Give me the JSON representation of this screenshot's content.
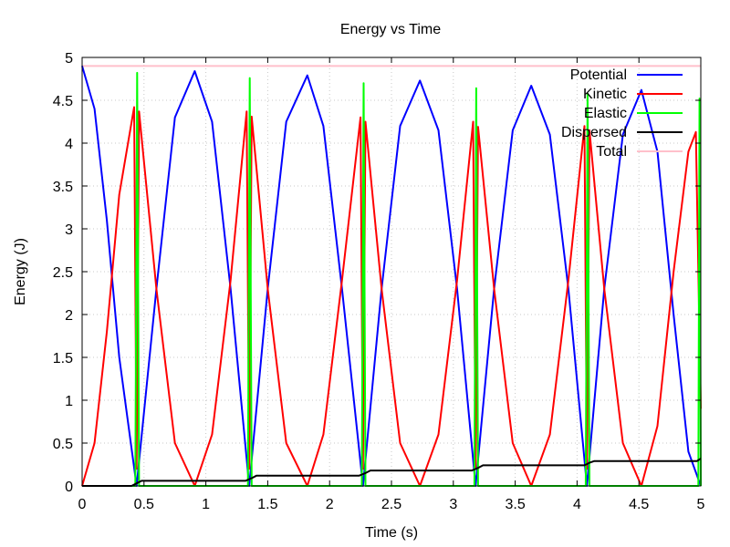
{
  "chart_data": {
    "type": "line",
    "title": "Energy vs Time",
    "xlabel": "Time (s)",
    "ylabel": "Energy (J)",
    "xlim": [
      0,
      5
    ],
    "ylim": [
      0,
      5
    ],
    "xticks": [
      "0",
      "0.5",
      "1",
      "1.5",
      "2",
      "2.5",
      "3",
      "3.5",
      "4",
      "4.5",
      "5"
    ],
    "yticks": [
      "0",
      "0.5",
      "1",
      "1.5",
      "2",
      "2.5",
      "3",
      "3.5",
      "4",
      "4.5",
      "5"
    ],
    "grid": true,
    "legend_position": "top-right",
    "series": [
      {
        "name": "Potential",
        "color": "#0000ff",
        "x": [
          0,
          0.1,
          0.2,
          0.3,
          0.44,
          0.6,
          0.75,
          0.91,
          1.05,
          1.2,
          1.35,
          1.5,
          1.65,
          1.82,
          1.95,
          2.1,
          2.27,
          2.42,
          2.57,
          2.73,
          2.88,
          3.03,
          3.18,
          3.33,
          3.48,
          3.63,
          3.78,
          3.93,
          4.08,
          4.22,
          4.37,
          4.52,
          4.65,
          4.78,
          4.9,
          5.0
        ],
        "y": [
          4.9,
          4.4,
          3.1,
          1.5,
          0.0,
          2.3,
          4.3,
          4.84,
          4.25,
          2.3,
          0.0,
          2.3,
          4.25,
          4.79,
          4.2,
          2.3,
          0.0,
          2.3,
          4.2,
          4.73,
          4.15,
          2.3,
          0.0,
          2.3,
          4.15,
          4.67,
          4.1,
          2.3,
          0.0,
          2.3,
          4.1,
          4.62,
          3.9,
          2.0,
          0.4,
          0.0
        ]
      },
      {
        "name": "Kinetic",
        "color": "#ff0000",
        "x": [
          0,
          0.1,
          0.2,
          0.3,
          0.42,
          0.44,
          0.46,
          0.6,
          0.75,
          0.91,
          1.05,
          1.2,
          1.33,
          1.35,
          1.37,
          1.5,
          1.65,
          1.82,
          1.95,
          2.1,
          2.25,
          2.27,
          2.29,
          2.42,
          2.57,
          2.73,
          2.88,
          3.03,
          3.16,
          3.18,
          3.2,
          3.33,
          3.48,
          3.63,
          3.78,
          3.93,
          4.06,
          4.08,
          4.1,
          4.22,
          4.37,
          4.52,
          4.65,
          4.78,
          4.9,
          4.96,
          5.0
        ],
        "y": [
          0.0,
          0.5,
          1.8,
          3.4,
          4.42,
          0.2,
          4.37,
          2.3,
          0.5,
          0.0,
          0.6,
          2.4,
          4.37,
          0.2,
          4.31,
          2.3,
          0.5,
          0.0,
          0.6,
          2.4,
          4.3,
          0.2,
          4.25,
          2.3,
          0.5,
          0.0,
          0.6,
          2.4,
          4.25,
          0.2,
          4.19,
          2.3,
          0.5,
          0.0,
          0.6,
          2.4,
          4.2,
          0.2,
          4.15,
          2.3,
          0.5,
          0.0,
          0.7,
          2.5,
          3.9,
          4.13,
          0.9
        ]
      },
      {
        "name": "Elastic",
        "color": "#00ff00",
        "x": [
          0,
          0.43,
          0.445,
          0.46,
          1.34,
          1.355,
          1.37,
          2.26,
          2.275,
          2.29,
          3.17,
          3.185,
          3.2,
          4.07,
          4.085,
          4.1,
          4.98,
          4.99,
          5.0
        ],
        "y": [
          0,
          0,
          4.82,
          0,
          0,
          4.76,
          0,
          0,
          4.7,
          0,
          0,
          4.64,
          0,
          0,
          4.58,
          0,
          0,
          4.52,
          0
        ]
      },
      {
        "name": "Dispersed",
        "color": "#000000",
        "x": [
          0,
          0.4,
          0.44,
          0.48,
          1.32,
          1.37,
          1.41,
          2.24,
          2.29,
          2.33,
          3.15,
          3.2,
          3.24,
          4.06,
          4.1,
          4.14,
          4.97,
          5.0
        ],
        "y": [
          0,
          0,
          0.03,
          0.06,
          0.06,
          0.09,
          0.12,
          0.12,
          0.15,
          0.18,
          0.18,
          0.21,
          0.24,
          0.24,
          0.27,
          0.29,
          0.29,
          0.32
        ]
      },
      {
        "name": "Total",
        "color": "#ffc0cb",
        "x": [
          0,
          5
        ],
        "y": [
          4.9,
          4.9
        ]
      }
    ]
  }
}
